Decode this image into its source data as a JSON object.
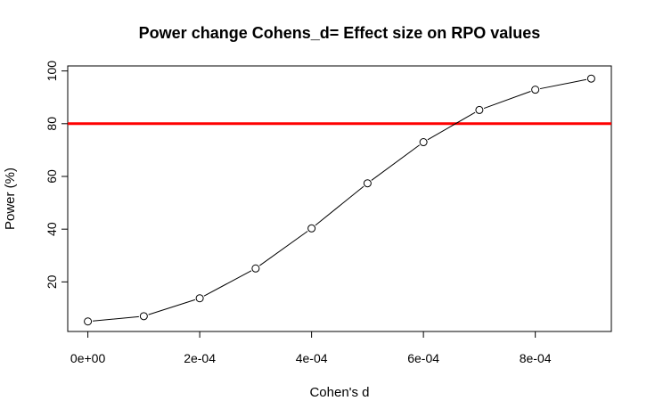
{
  "chart_data": {
    "type": "line",
    "title": "Power change Cohens_d= Effect size on RPO values",
    "xlabel": "Cohen's d",
    "ylabel": "Power (%)",
    "x": [
      0,
      0.0001,
      0.0002,
      0.0003,
      0.0004,
      0.0005,
      0.0006,
      0.0007,
      0.0008,
      0.0009
    ],
    "series": [
      {
        "values": [
          5.0,
          7.0,
          13.8,
          25.1,
          40.3,
          57.4,
          73.0,
          85.2,
          92.9,
          97.1
        ]
      }
    ],
    "xlim": [
      -3.6e-05,
      0.000936
    ],
    "ylim": [
      1.2,
      101.9
    ],
    "x_ticks": [
      0,
      0.0002,
      0.0004,
      0.0006,
      0.0008
    ],
    "x_tick_labels": [
      "0e+00",
      "2e-04",
      "4e-04",
      "6e-04",
      "8e-04"
    ],
    "y_ticks": [
      20,
      40,
      60,
      80,
      100
    ],
    "y_tick_labels": [
      "20",
      "40",
      "60",
      "80",
      "100"
    ],
    "reference_line": {
      "y": 80,
      "color": "#ff0000"
    },
    "line_color": "#000000",
    "marker": "open-circle",
    "grid": false,
    "legend": "none"
  }
}
